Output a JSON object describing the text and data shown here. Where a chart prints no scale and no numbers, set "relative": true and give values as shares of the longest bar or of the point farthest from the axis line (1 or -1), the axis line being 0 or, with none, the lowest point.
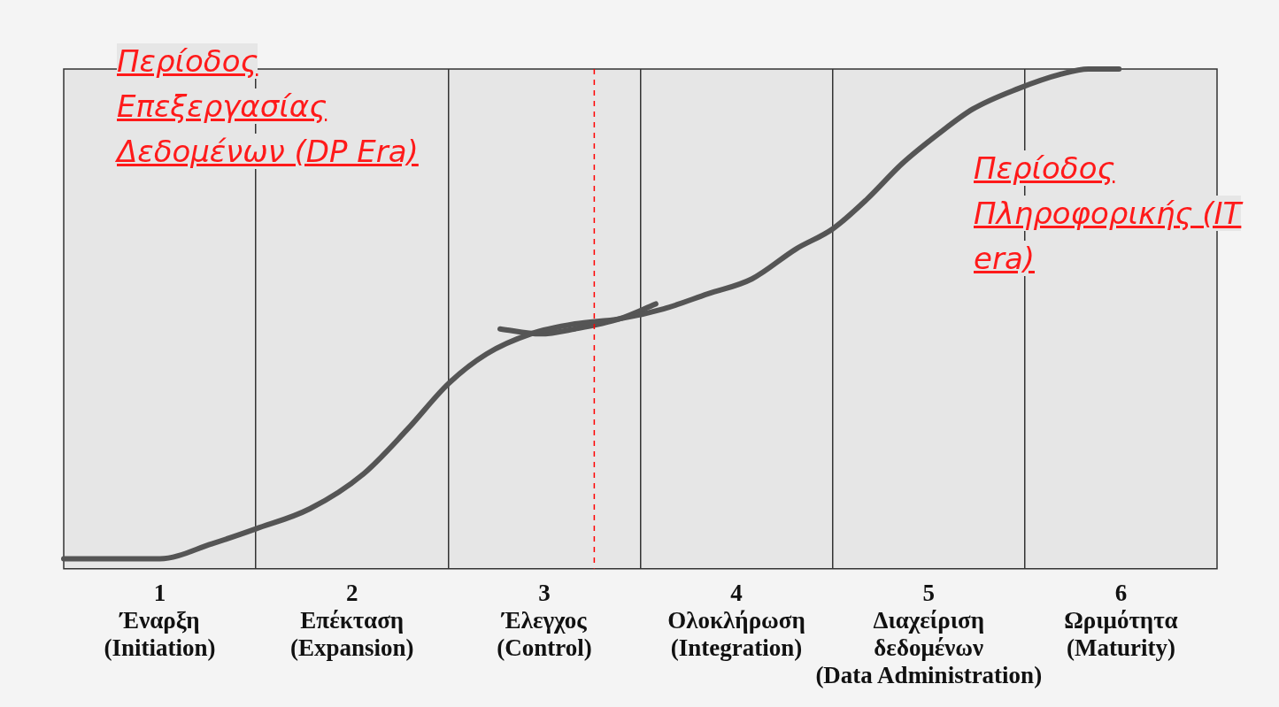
{
  "chart_data": {
    "type": "line",
    "relative": true,
    "xlim": [
      0.5,
      6.5
    ],
    "xticks": [
      {
        "value": 1,
        "label": "1\nΈναρξη\n(Initiation)"
      },
      {
        "value": 1.5,
        "label": null
      },
      {
        "value": 2,
        "label": "2\nΕπέκταση\n(Expansion)"
      },
      {
        "value": 2.5,
        "label": null
      },
      {
        "value": 3,
        "label": "3\nΈλεγχος\n(Control)"
      },
      {
        "value": 3.5,
        "label": null
      },
      {
        "value": 4,
        "label": "4\nΟλοκλήρωση\n(Integration)"
      },
      {
        "value": 4.5,
        "label": null
      },
      {
        "value": 5,
        "label": "5\nΔιαχείριση\nδεδομένων\n(Data Administration)"
      },
      {
        "value": 5.5,
        "label": null
      },
      {
        "value": 6,
        "label": "6\nΩριμότητα\n(Maturity)"
      }
    ],
    "grid": "x",
    "legend": false,
    "marker": "none",
    "line_style": "solid",
    "series": [
      {
        "color": "#555555",
        "x": [
          0.5,
          0.72,
          1.0,
          1.27,
          1.5,
          1.78,
          2.06,
          2.29,
          2.5,
          2.7,
          2.93,
          3.16,
          3.39,
          3.62,
          3.85,
          4.08,
          4.31,
          4.5,
          4.68,
          4.86,
          5.05,
          5.23,
          5.46,
          5.69,
          5.83,
          5.99
        ],
        "values": [
          0.02,
          0.02,
          0.02,
          0.05,
          0.08,
          0.12,
          0.19,
          0.28,
          0.37,
          0.43,
          0.47,
          0.49,
          0.5,
          0.52,
          0.55,
          0.58,
          0.64,
          0.68,
          0.74,
          0.81,
          0.87,
          0.92,
          0.96,
          0.99,
          1.0,
          1.0
        ]
      },
      {
        "color": "#555555",
        "x": [
          2.77,
          2.98,
          3.16,
          3.39,
          3.58
        ],
        "values": [
          0.48,
          0.47,
          0.48,
          0.5,
          0.53
        ]
      }
    ],
    "ref_lines": [
      {
        "axis": "x",
        "value": 3.26,
        "color": "#ff0000",
        "line_style": "dashed"
      }
    ],
    "annotations": [
      "Περίοδος Επεξεργασίας Δεδομένων (DP Era)",
      "Περίοδος Πληροφορικής (IT era)"
    ]
  }
}
